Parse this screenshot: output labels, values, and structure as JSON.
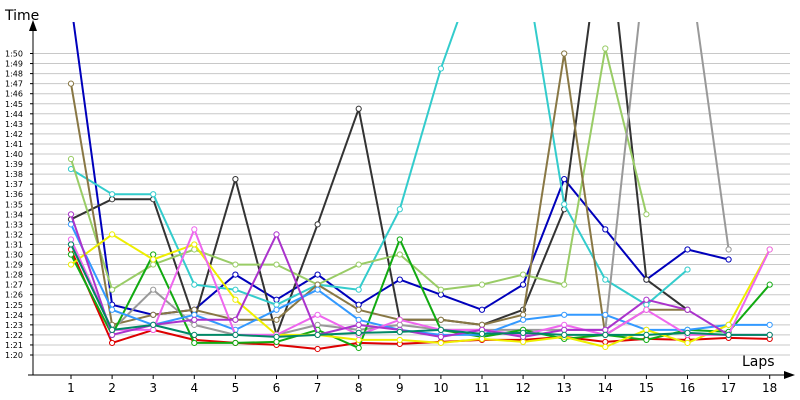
{
  "chart_data": {
    "type": "line",
    "title": "",
    "xlabel": "Laps",
    "ylabel": "Time",
    "x": [
      1,
      2,
      3,
      4,
      5,
      6,
      7,
      8,
      9,
      10,
      11,
      12,
      13,
      14,
      15,
      16,
      17,
      18
    ],
    "y_tick_labels": [
      "1:20",
      "1:21",
      "1:22",
      "1:23",
      "1:24",
      "1:25",
      "1:26",
      "1:27",
      "1:28",
      "1:29",
      "1:30",
      "1:31",
      "1:32",
      "1:33",
      "1:34",
      "1:35",
      "1:36",
      "1:37",
      "1:38",
      "1:39",
      "1:40",
      "1:41",
      "1:42",
      "1:43",
      "1:44",
      "1:45",
      "1:46",
      "1:47",
      "1:48",
      "1:49",
      "1:50"
    ],
    "ylim_seconds": [
      80,
      110
    ],
    "grid": true,
    "marker": "hollow-circle",
    "series": [
      {
        "color": "#0000bb",
        "values": [
          115,
          85,
          84,
          84.5,
          88,
          85.5,
          88,
          85,
          87.5,
          86,
          84.5,
          87,
          97.5,
          92.5,
          87.5,
          90.5,
          89.5,
          null
        ]
      },
      {
        "color": "#333333",
        "values": [
          93.5,
          95.5,
          95.5,
          83.5,
          97.5,
          82,
          93,
          104.5,
          83.5,
          83.5,
          83,
          84.5,
          94.5,
          125,
          87.5,
          84.5,
          null,
          null
        ]
      },
      {
        "color": "#33cccc",
        "values": [
          98.5,
          96,
          96,
          87,
          86.5,
          85,
          87,
          86.5,
          94.5,
          108.5,
          120,
          120,
          95,
          87.5,
          85,
          88.5,
          null,
          null
        ]
      },
      {
        "color": "#99cc66",
        "values": [
          99.5,
          86.5,
          89,
          90.5,
          89,
          89,
          87,
          89,
          90,
          86.5,
          87,
          88,
          87,
          110.5,
          94,
          null,
          null,
          null
        ]
      },
      {
        "color": "#887744",
        "values": [
          107,
          83,
          84,
          84.5,
          83.5,
          83.5,
          87,
          84.5,
          83.5,
          83.5,
          83,
          84,
          110,
          82,
          84.5,
          84.5,
          null,
          null
        ]
      },
      {
        "color": "#999999",
        "values": [
          91,
          82.5,
          86.5,
          83,
          82,
          82,
          83,
          82.5,
          83,
          82.5,
          82.5,
          82.5,
          82.5,
          82.5,
          120,
          120,
          90.5,
          null
        ]
      },
      {
        "color": "#dd0000",
        "values": [
          90.5,
          81.2,
          82.5,
          81.5,
          81.2,
          81,
          80.6,
          81.2,
          81.1,
          81.3,
          81.5,
          81.5,
          81.8,
          81.3,
          81.6,
          81.5,
          81.7,
          81.6
        ]
      },
      {
        "color": "#11aa11",
        "values": [
          90,
          82,
          90,
          81.2,
          81.2,
          81.3,
          82.5,
          80.7,
          91.5,
          82.5,
          81.8,
          82.5,
          81.6,
          82,
          81.5,
          82.5,
          82.3,
          87
        ]
      },
      {
        "color": "#3399ff",
        "values": [
          93,
          84.5,
          83,
          84,
          82.5,
          84.5,
          86.5,
          83.5,
          82.5,
          82,
          82,
          83.5,
          84,
          84,
          82.5,
          82.5,
          83,
          83
        ]
      },
      {
        "color": "#eeee00",
        "values": [
          89,
          92,
          89.5,
          91,
          85.5,
          82,
          82,
          81.5,
          81.5,
          81.2,
          81.6,
          81.3,
          81.8,
          80.8,
          82.5,
          81.2,
          83,
          90.5
        ]
      },
      {
        "color": "#ee66ee",
        "values": [
          91.5,
          82.5,
          82.5,
          92.5,
          82,
          82,
          84,
          82,
          83.5,
          82.5,
          82.5,
          82,
          83,
          82,
          84.5,
          82,
          82,
          90.5
        ]
      },
      {
        "color": "#aa33cc",
        "values": [
          94,
          82,
          83,
          83.5,
          83.5,
          92,
          82,
          83,
          82.5,
          81.8,
          82.5,
          81.8,
          82.5,
          82.5,
          85.5,
          84.5,
          82,
          82
        ]
      },
      {
        "color": "#008866",
        "values": [
          91,
          82.5,
          83,
          82,
          82,
          81.8,
          82,
          82.2,
          82.3,
          82.5,
          82.1,
          82.2,
          82,
          82,
          82,
          82.2,
          82,
          82
        ]
      }
    ]
  }
}
